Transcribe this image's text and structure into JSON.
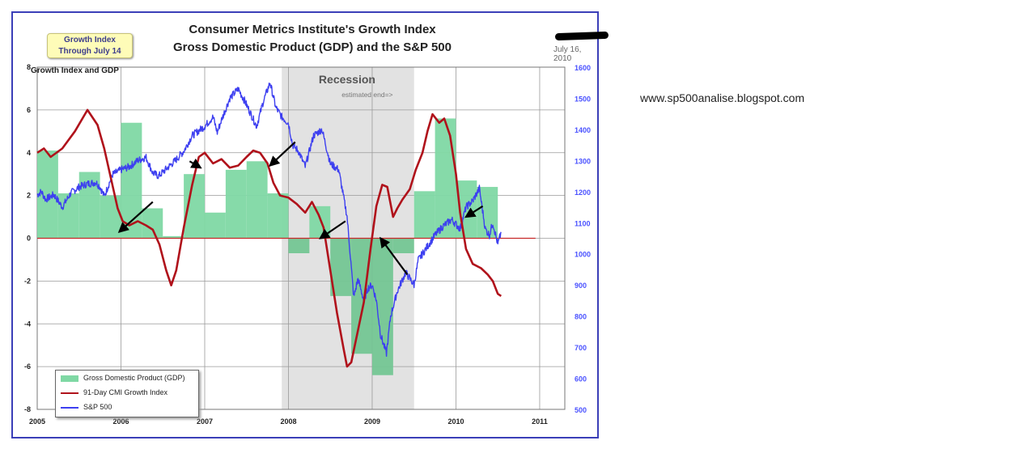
{
  "badge": {
    "line1": "Growth Index",
    "line2": "Through July 14"
  },
  "title": {
    "line1": "Consumer Metrics Institute's Growth Index",
    "line2": "Gross Domestic Product (GDP) and the S&P 500"
  },
  "date": "July 16, 2010",
  "left_axis_label": "Growth Index and GDP",
  "recession": {
    "label": "Recession",
    "note": "estimated end=>",
    "start": 2007.92,
    "end": 2009.5
  },
  "website": "www.sp500analise.blogspot.com",
  "colors": {
    "gdp": "#7fd8a4",
    "gdp_neg": "#74c694",
    "growth": "#b0121b",
    "sp500": "#3d3ff0",
    "recession": "#e2e2e2",
    "zero": "#c62828",
    "right_axis": "#4a52ff"
  },
  "legend": {
    "gdp": "Gross Domestic Product (GDP)",
    "growth": "91-Day CMI Growth Index",
    "sp500": "S&P 500"
  },
  "chart_data": {
    "type": "bar+line",
    "title": "Consumer Metrics Institute's Growth Index / Gross Domestic Product (GDP) and the S&P 500",
    "x_range": [
      2005,
      2011.3
    ],
    "x_ticks": [
      "2005",
      "2006",
      "2007",
      "2008",
      "2009",
      "2010",
      "2011"
    ],
    "y_left": {
      "label": "Growth Index and GDP",
      "range": [
        -8,
        8
      ],
      "ticks": [
        "8",
        "6",
        "4",
        "2",
        "0",
        "-2",
        "-4",
        "-6",
        "-8"
      ]
    },
    "y_right": {
      "label": "S&P 500",
      "range": [
        500,
        1600
      ],
      "ticks": [
        "1600",
        "1500",
        "1400",
        "1300",
        "1200",
        "1100",
        "1000",
        "900",
        "800",
        "700",
        "600",
        "500"
      ]
    },
    "gdp_quarters": [
      {
        "start": 2005.0,
        "end": 2005.25,
        "value": 4.1
      },
      {
        "start": 2005.25,
        "end": 2005.5,
        "value": 2.1
      },
      {
        "start": 2005.5,
        "end": 2005.75,
        "value": 3.1
      },
      {
        "start": 2005.75,
        "end": 2006.0,
        "value": 2.0
      },
      {
        "start": 2006.0,
        "end": 2006.25,
        "value": 5.4
      },
      {
        "start": 2006.25,
        "end": 2006.5,
        "value": 1.4
      },
      {
        "start": 2006.5,
        "end": 2006.75,
        "value": 0.1
      },
      {
        "start": 2006.75,
        "end": 2007.0,
        "value": 3.0
      },
      {
        "start": 2007.0,
        "end": 2007.25,
        "value": 1.2
      },
      {
        "start": 2007.25,
        "end": 2007.5,
        "value": 3.2
      },
      {
        "start": 2007.5,
        "end": 2007.75,
        "value": 3.6
      },
      {
        "start": 2007.75,
        "end": 2008.0,
        "value": 2.1
      },
      {
        "start": 2008.0,
        "end": 2008.25,
        "value": -0.7
      },
      {
        "start": 2008.25,
        "end": 2008.5,
        "value": 1.5
      },
      {
        "start": 2008.5,
        "end": 2008.75,
        "value": -2.7
      },
      {
        "start": 2008.75,
        "end": 2009.0,
        "value": -5.4
      },
      {
        "start": 2009.0,
        "end": 2009.25,
        "value": -6.4
      },
      {
        "start": 2009.25,
        "end": 2009.5,
        "value": -0.7
      },
      {
        "start": 2009.5,
        "end": 2009.75,
        "value": 2.2
      },
      {
        "start": 2009.75,
        "end": 2010.0,
        "value": 5.6
      },
      {
        "start": 2010.0,
        "end": 2010.25,
        "value": 2.7
      },
      {
        "start": 2010.25,
        "end": 2010.5,
        "value": 2.4
      }
    ],
    "growth_index": [
      [
        2005.0,
        4.0
      ],
      [
        2005.08,
        4.2
      ],
      [
        2005.16,
        3.8
      ],
      [
        2005.3,
        4.2
      ],
      [
        2005.45,
        5.0
      ],
      [
        2005.6,
        6.0
      ],
      [
        2005.72,
        5.3
      ],
      [
        2005.8,
        4.2
      ],
      [
        2005.88,
        2.8
      ],
      [
        2005.96,
        1.4
      ],
      [
        2006.02,
        0.8
      ],
      [
        2006.1,
        0.6
      ],
      [
        2006.2,
        0.8
      ],
      [
        2006.3,
        0.6
      ],
      [
        2006.38,
        0.4
      ],
      [
        2006.46,
        -0.3
      ],
      [
        2006.54,
        -1.5
      ],
      [
        2006.6,
        -2.2
      ],
      [
        2006.66,
        -1.5
      ],
      [
        2006.75,
        0.5
      ],
      [
        2006.85,
        2.5
      ],
      [
        2006.93,
        3.8
      ],
      [
        2007.0,
        4.0
      ],
      [
        2007.1,
        3.5
      ],
      [
        2007.2,
        3.7
      ],
      [
        2007.3,
        3.3
      ],
      [
        2007.4,
        3.4
      ],
      [
        2007.5,
        3.8
      ],
      [
        2007.58,
        4.1
      ],
      [
        2007.66,
        4.0
      ],
      [
        2007.75,
        3.5
      ],
      [
        2007.82,
        2.6
      ],
      [
        2007.9,
        2.0
      ],
      [
        2008.0,
        1.9
      ],
      [
        2008.1,
        1.6
      ],
      [
        2008.2,
        1.2
      ],
      [
        2008.28,
        1.7
      ],
      [
        2008.36,
        1.1
      ],
      [
        2008.42,
        0.5
      ],
      [
        2008.5,
        -1.5
      ],
      [
        2008.58,
        -3.5
      ],
      [
        2008.66,
        -5.2
      ],
      [
        2008.7,
        -6.0
      ],
      [
        2008.75,
        -5.8
      ],
      [
        2008.82,
        -4.5
      ],
      [
        2008.9,
        -3.0
      ],
      [
        2008.98,
        -0.5
      ],
      [
        2009.05,
        1.5
      ],
      [
        2009.12,
        2.5
      ],
      [
        2009.18,
        2.4
      ],
      [
        2009.25,
        1.0
      ],
      [
        2009.3,
        1.4
      ],
      [
        2009.36,
        1.8
      ],
      [
        2009.45,
        2.3
      ],
      [
        2009.52,
        3.2
      ],
      [
        2009.6,
        4.0
      ],
      [
        2009.66,
        5.0
      ],
      [
        2009.72,
        5.8
      ],
      [
        2009.8,
        5.4
      ],
      [
        2009.86,
        5.6
      ],
      [
        2009.93,
        4.8
      ],
      [
        2010.0,
        3.0
      ],
      [
        2010.05,
        1.2
      ],
      [
        2010.12,
        -0.5
      ],
      [
        2010.2,
        -1.2
      ],
      [
        2010.3,
        -1.4
      ],
      [
        2010.38,
        -1.7
      ],
      [
        2010.44,
        -2.0
      ],
      [
        2010.5,
        -2.6
      ],
      [
        2010.54,
        -2.7
      ]
    ],
    "sp500": [
      [
        2005.0,
        1190
      ],
      [
        2005.05,
        1200
      ],
      [
        2005.1,
        1175
      ],
      [
        2005.2,
        1190
      ],
      [
        2005.3,
        1150
      ],
      [
        2005.4,
        1195
      ],
      [
        2005.5,
        1215
      ],
      [
        2005.6,
        1225
      ],
      [
        2005.7,
        1230
      ],
      [
        2005.75,
        1215
      ],
      [
        2005.8,
        1185
      ],
      [
        2005.9,
        1255
      ],
      [
        2006.0,
        1270
      ],
      [
        2006.1,
        1280
      ],
      [
        2006.2,
        1300
      ],
      [
        2006.3,
        1310
      ],
      [
        2006.38,
        1260
      ],
      [
        2006.45,
        1250
      ],
      [
        2006.55,
        1275
      ],
      [
        2006.65,
        1300
      ],
      [
        2006.75,
        1330
      ],
      [
        2006.85,
        1380
      ],
      [
        2007.0,
        1410
      ],
      [
        2007.1,
        1440
      ],
      [
        2007.15,
        1390
      ],
      [
        2007.2,
        1430
      ],
      [
        2007.3,
        1500
      ],
      [
        2007.4,
        1530
      ],
      [
        2007.48,
        1490
      ],
      [
        2007.55,
        1450
      ],
      [
        2007.62,
        1410
      ],
      [
        2007.7,
        1490
      ],
      [
        2007.78,
        1550
      ],
      [
        2007.85,
        1470
      ],
      [
        2007.92,
        1440
      ],
      [
        2008.0,
        1420
      ],
      [
        2008.05,
        1350
      ],
      [
        2008.12,
        1330
      ],
      [
        2008.2,
        1280
      ],
      [
        2008.3,
        1380
      ],
      [
        2008.4,
        1400
      ],
      [
        2008.5,
        1290
      ],
      [
        2008.6,
        1270
      ],
      [
        2008.7,
        1120
      ],
      [
        2008.78,
        860
      ],
      [
        2008.83,
        920
      ],
      [
        2008.9,
        850
      ],
      [
        2008.95,
        890
      ],
      [
        2009.0,
        900
      ],
      [
        2009.05,
        850
      ],
      [
        2009.1,
        740
      ],
      [
        2009.17,
        680
      ],
      [
        2009.22,
        800
      ],
      [
        2009.3,
        880
      ],
      [
        2009.4,
        940
      ],
      [
        2009.5,
        900
      ],
      [
        2009.55,
        980
      ],
      [
        2009.65,
        1020
      ],
      [
        2009.75,
        1060
      ],
      [
        2009.85,
        1090
      ],
      [
        2009.95,
        1110
      ],
      [
        2010.05,
        1080
      ],
      [
        2010.12,
        1150
      ],
      [
        2010.2,
        1170
      ],
      [
        2010.28,
        1210
      ],
      [
        2010.35,
        1080
      ],
      [
        2010.4,
        1060
      ],
      [
        2010.44,
        1100
      ],
      [
        2010.5,
        1030
      ],
      [
        2010.54,
        1070
      ]
    ],
    "legend": [
      "Gross Domestic Product (GDP)",
      "91-Day CMI Growth Index",
      "S&P 500"
    ]
  }
}
